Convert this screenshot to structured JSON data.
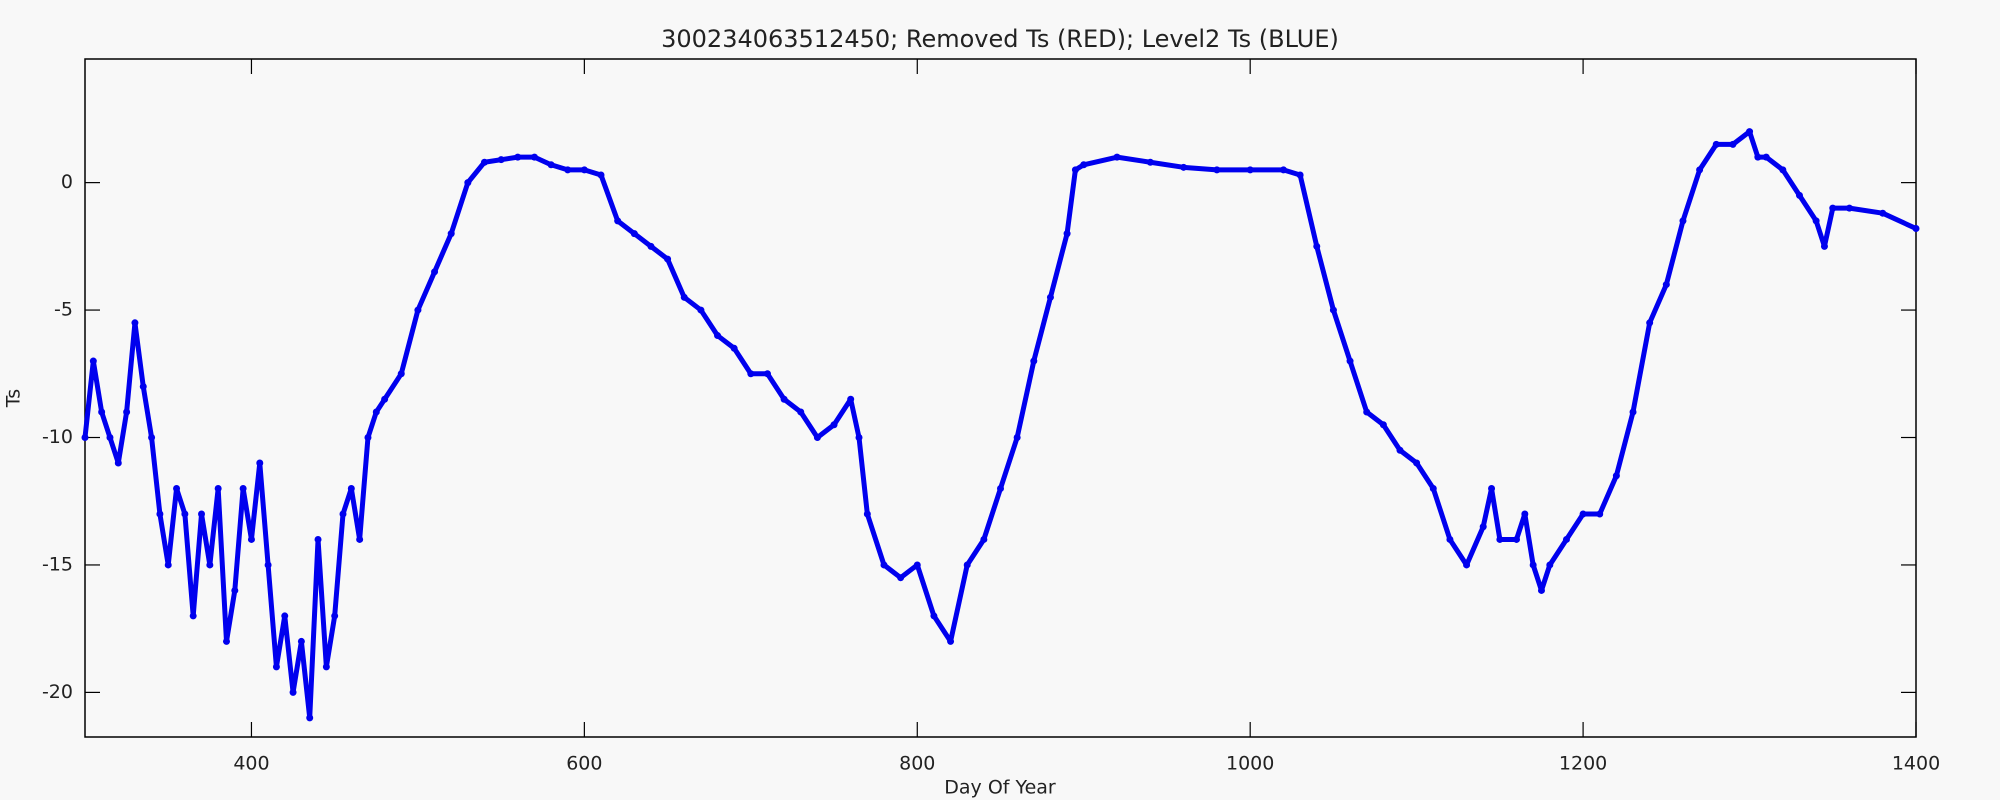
{
  "chart_data": {
    "type": "scatter",
    "title": "300234063512450; Removed Ts (RED); Level2 Ts (BLUE)",
    "x_label": "Day Of Year",
    "y_label": "Ts",
    "xlim": [
      300,
      1400
    ],
    "xticks": [
      400,
      600,
      800,
      1000,
      1200,
      1400
    ],
    "ylim": [
      -21.75,
      4.85
    ],
    "yticks": [
      -20,
      -15,
      -10,
      -5,
      0
    ],
    "series": [
      {
        "color": "#0000ee",
        "x": [
          300,
          305,
          310,
          315,
          320,
          325,
          330,
          335,
          340,
          345,
          350,
          355,
          360,
          365,
          370,
          375,
          380,
          385,
          390,
          395,
          400,
          405,
          410,
          415,
          420,
          425,
          430,
          435,
          440,
          445,
          450,
          455,
          460,
          465,
          470,
          475,
          480,
          490,
          500,
          510,
          520,
          530,
          540,
          550,
          560,
          570,
          580,
          590,
          600,
          610,
          620,
          630,
          640,
          650,
          660,
          670,
          680,
          690,
          700,
          710,
          720,
          730,
          740,
          750,
          760,
          765,
          770,
          780,
          790,
          800,
          810,
          820,
          830,
          840,
          850,
          860,
          870,
          880,
          890,
          895,
          900,
          920,
          940,
          960,
          980,
          1000,
          1020,
          1030,
          1040,
          1050,
          1060,
          1070,
          1080,
          1090,
          1100,
          1110,
          1120,
          1130,
          1140,
          1145,
          1150,
          1160,
          1165,
          1170,
          1175,
          1180,
          1190,
          1200,
          1210,
          1220,
          1230,
          1240,
          1250,
          1260,
          1270,
          1280,
          1290,
          1300,
          1305,
          1310,
          1320,
          1330,
          1340,
          1345,
          1350,
          1360,
          1380,
          1400
        ],
        "values": [
          -10,
          -7,
          -9,
          -10,
          -11,
          -9,
          -5.5,
          -8,
          -10,
          -13,
          -15,
          -12,
          -13,
          -17,
          -13,
          -15,
          -12,
          -18,
          -16,
          -12,
          -14,
          -11,
          -15,
          -19,
          -17,
          -20,
          -18,
          -21,
          -14,
          -19,
          -17,
          -13,
          -12,
          -14,
          -10,
          -9,
          -8.5,
          -7.5,
          -5,
          -3.5,
          -2,
          0,
          0.8,
          0.9,
          1,
          1,
          0.7,
          0.5,
          0.5,
          0.3,
          -1.5,
          -2,
          -2.5,
          -3,
          -4.5,
          -5,
          -6,
          -6.5,
          -7.5,
          -7.5,
          -8.5,
          -9,
          -10,
          -9.5,
          -8.5,
          -10,
          -13,
          -15,
          -15.5,
          -15,
          -17,
          -18,
          -15,
          -14,
          -12,
          -10,
          -7,
          -4.5,
          -2,
          0.5,
          0.7,
          1,
          0.8,
          0.6,
          0.5,
          0.5,
          0.5,
          0.3,
          -2.5,
          -5,
          -7,
          -9,
          -9.5,
          -10.5,
          -11,
          -12,
          -14,
          -15,
          -13.5,
          -12,
          -14,
          -14,
          -13,
          -15,
          -16,
          -15,
          -14,
          -13,
          -13,
          -11.5,
          -9,
          -5.5,
          -4,
          -1.5,
          0.5,
          1.5,
          1.5,
          2,
          1,
          1,
          0.5,
          -0.5,
          -1.5,
          -2.5,
          -1,
          -1,
          -1.2,
          -1.8
        ]
      }
    ]
  }
}
